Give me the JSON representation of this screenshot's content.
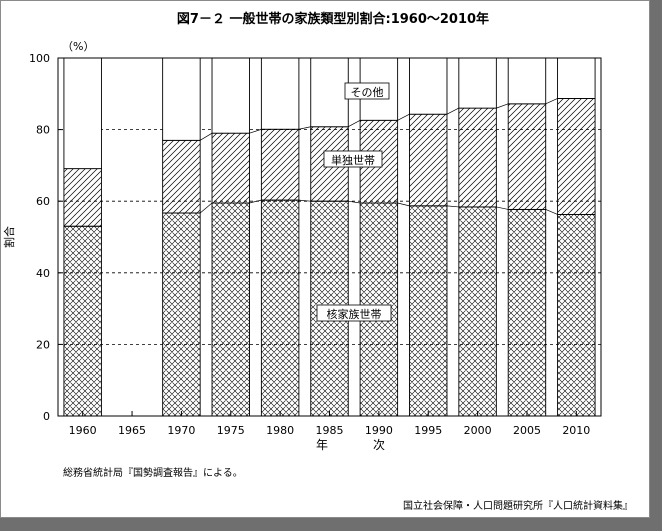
{
  "chart_data": {
    "type": "bar",
    "title": "図7－２ 一般世帯の家族類型別割合:1960～2010年",
    "unit_label": "（%）",
    "ylabel": "割合",
    "xlabel_parts": [
      "年",
      "次"
    ],
    "ylim": [
      0,
      100
    ],
    "yticks": [
      0,
      20,
      40,
      60,
      80,
      100
    ],
    "grid": "dashed horizontal at 20-unit intervals",
    "categories": [
      "1960",
      "1965",
      "1970",
      "1975",
      "1980",
      "1985",
      "1990",
      "1995",
      "2000",
      "2005",
      "2010"
    ],
    "series": [
      {
        "name": "核家族世帯",
        "values": [
          53.0,
          null,
          56.7,
          59.5,
          60.3,
          60.0,
          59.5,
          58.7,
          58.4,
          57.7,
          56.3
        ]
      },
      {
        "name": "単独世帯",
        "values": [
          16.1,
          null,
          20.3,
          19.5,
          19.8,
          20.8,
          23.1,
          25.6,
          27.6,
          29.5,
          32.4
        ]
      },
      {
        "name": "その他",
        "values": [
          30.9,
          null,
          23.0,
          21.0,
          19.9,
          19.2,
          17.4,
          15.7,
          14.0,
          12.8,
          11.3
        ]
      }
    ],
    "series_label_positions": [
      "inside bars (middle)",
      "inside bars (upper)",
      "inside bars (top)"
    ]
  },
  "notes": {
    "source_left": "総務省統計局『国勢調査報告』による。",
    "source_right": "国立社会保障・人口問題研究所『人口統計資料集』"
  },
  "colors": {
    "ink": "#000000",
    "frame_shadow": "#6f6f6f"
  }
}
